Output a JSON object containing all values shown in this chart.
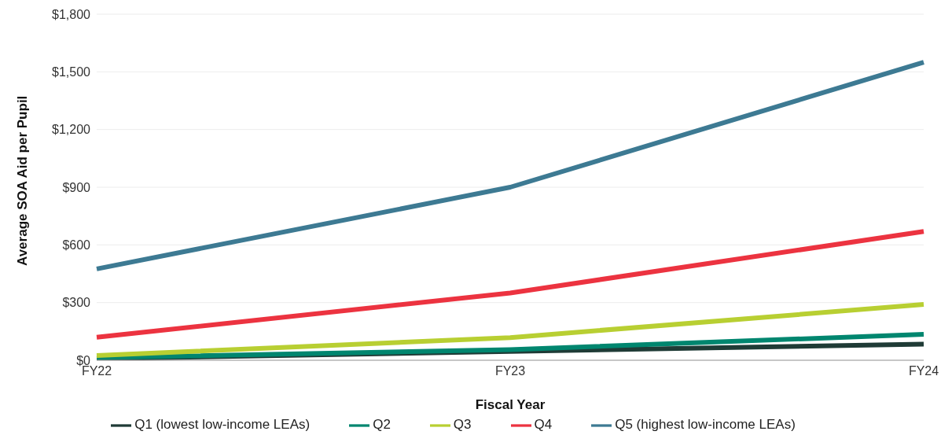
{
  "chart_data": {
    "type": "line",
    "xlabel": "Fiscal Year",
    "ylabel": "Average SOA Aid per Pupil",
    "categories": [
      "FY22",
      "FY23",
      "FY24"
    ],
    "series": [
      {
        "name": "Q1 (lowest low-income LEAs)",
        "color": "#1f3b36",
        "values": [
          8,
          46,
          84
        ]
      },
      {
        "name": "Q2",
        "color": "#00866f",
        "values": [
          13,
          55,
          135
        ]
      },
      {
        "name": "Q3",
        "color": "#b8cf32",
        "values": [
          25,
          118,
          290
        ]
      },
      {
        "name": "Q4",
        "color": "#ec3340",
        "values": [
          120,
          350,
          670
        ]
      },
      {
        "name": "Q5 (highest low-income LEAs)",
        "color": "#3d7a93",
        "values": [
          475,
          900,
          1550
        ]
      }
    ],
    "ylim": [
      0,
      1800
    ],
    "yticks": [
      {
        "value": 0,
        "label": "$0"
      },
      {
        "value": 300,
        "label": "$300"
      },
      {
        "value": 600,
        "label": "$600"
      },
      {
        "value": 900,
        "label": "$900"
      },
      {
        "value": 1200,
        "label": "$1,200"
      },
      {
        "value": 1500,
        "label": "$1,500"
      },
      {
        "value": 1800,
        "label": "$1,800"
      }
    ],
    "grid": "y",
    "legend": "bottom",
    "marker": "none",
    "line_style": "solid"
  }
}
